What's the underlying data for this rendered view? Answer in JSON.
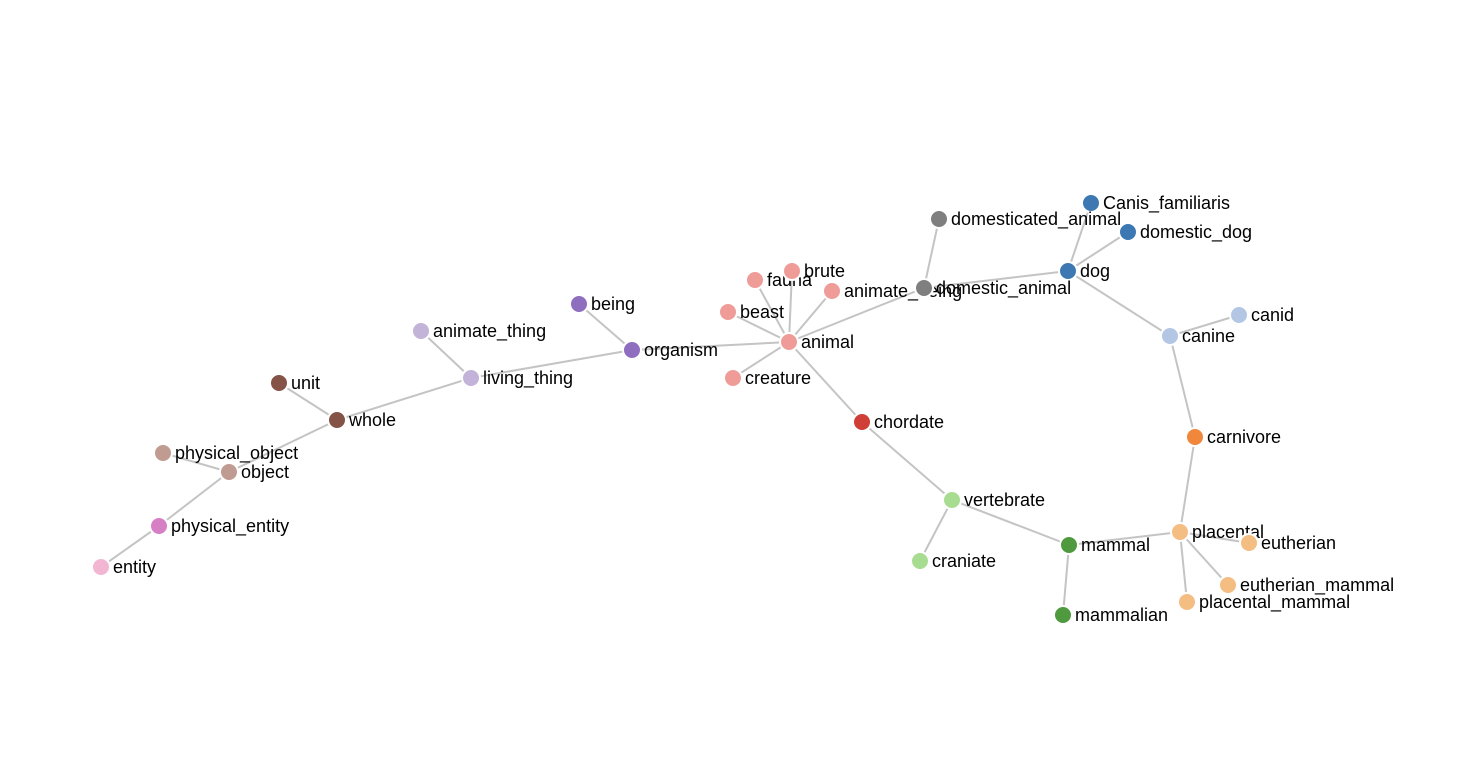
{
  "graph": {
    "nodes": [
      {
        "id": "entity",
        "label": "entity",
        "color": "#f2b6d3"
      },
      {
        "id": "physical_entity",
        "label": "physical_entity",
        "color": "#d67fc4"
      },
      {
        "id": "object",
        "label": "object",
        "color": "#c09b92"
      },
      {
        "id": "physical_object",
        "label": "physical_object",
        "color": "#c09b92"
      },
      {
        "id": "whole",
        "label": "whole",
        "color": "#855248"
      },
      {
        "id": "unit",
        "label": "unit",
        "color": "#855248"
      },
      {
        "id": "living_thing",
        "label": "living_thing",
        "color": "#c3b3d8"
      },
      {
        "id": "animate_thing",
        "label": "animate_thing",
        "color": "#c3b3d8"
      },
      {
        "id": "organism",
        "label": "organism",
        "color": "#8f6ec0"
      },
      {
        "id": "being",
        "label": "being",
        "color": "#8f6ec0"
      },
      {
        "id": "animal",
        "label": "animal",
        "color": "#ef9c98"
      },
      {
        "id": "fauna",
        "label": "fauna",
        "color": "#ef9c98"
      },
      {
        "id": "brute",
        "label": "brute",
        "color": "#ef9c98"
      },
      {
        "id": "beast",
        "label": "beast",
        "color": "#ef9c98"
      },
      {
        "id": "creature",
        "label": "creature",
        "color": "#ef9c98"
      },
      {
        "id": "animate_being",
        "label": "animate_being",
        "color": "#ef9c98"
      },
      {
        "id": "chordate",
        "label": "chordate",
        "color": "#cf3e37"
      },
      {
        "id": "vertebrate",
        "label": "vertebrate",
        "color": "#a8dc91"
      },
      {
        "id": "craniate",
        "label": "craniate",
        "color": "#a8dc91"
      },
      {
        "id": "mammal",
        "label": "mammal",
        "color": "#4f9a3f"
      },
      {
        "id": "mammalian",
        "label": "mammalian",
        "color": "#4f9a3f"
      },
      {
        "id": "placental",
        "label": "placental",
        "color": "#f4bd82"
      },
      {
        "id": "eutherian",
        "label": "eutherian",
        "color": "#f4bd82"
      },
      {
        "id": "eutherian_mammal",
        "label": "eutherian_mammal",
        "color": "#f4bd82"
      },
      {
        "id": "placental_mammal",
        "label": "placental_mammal",
        "color": "#f4bd82"
      },
      {
        "id": "carnivore",
        "label": "carnivore",
        "color": "#f0873a"
      },
      {
        "id": "canine",
        "label": "canine",
        "color": "#b3c7e4"
      },
      {
        "id": "canid",
        "label": "canid",
        "color": "#b3c7e4"
      },
      {
        "id": "dog",
        "label": "dog",
        "color": "#3d78b3"
      },
      {
        "id": "Canis_familiaris",
        "label": "Canis_familiaris",
        "color": "#3d78b3"
      },
      {
        "id": "domestic_dog",
        "label": "domestic_dog",
        "color": "#3d78b3"
      },
      {
        "id": "domestic_animal",
        "label": "domestic_animal",
        "color": "#7f7f7f"
      },
      {
        "id": "domesticated_animal",
        "label": "domesticated_animal",
        "color": "#7f7f7f"
      }
    ],
    "links": [
      {
        "source": "entity",
        "target": "physical_entity"
      },
      {
        "source": "physical_entity",
        "target": "object"
      },
      {
        "source": "object",
        "target": "physical_object"
      },
      {
        "source": "object",
        "target": "whole"
      },
      {
        "source": "whole",
        "target": "unit"
      },
      {
        "source": "whole",
        "target": "living_thing"
      },
      {
        "source": "living_thing",
        "target": "animate_thing"
      },
      {
        "source": "living_thing",
        "target": "organism"
      },
      {
        "source": "organism",
        "target": "being"
      },
      {
        "source": "organism",
        "target": "animal"
      },
      {
        "source": "animal",
        "target": "fauna"
      },
      {
        "source": "animal",
        "target": "brute"
      },
      {
        "source": "animal",
        "target": "beast"
      },
      {
        "source": "animal",
        "target": "creature"
      },
      {
        "source": "animal",
        "target": "animate_being"
      },
      {
        "source": "animal",
        "target": "chordate"
      },
      {
        "source": "animal",
        "target": "domestic_animal"
      },
      {
        "source": "chordate",
        "target": "vertebrate"
      },
      {
        "source": "vertebrate",
        "target": "craniate"
      },
      {
        "source": "vertebrate",
        "target": "mammal"
      },
      {
        "source": "mammal",
        "target": "mammalian"
      },
      {
        "source": "mammal",
        "target": "placental"
      },
      {
        "source": "placental",
        "target": "eutherian"
      },
      {
        "source": "placental",
        "target": "eutherian_mammal"
      },
      {
        "source": "placental",
        "target": "placental_mammal"
      },
      {
        "source": "placental",
        "target": "carnivore"
      },
      {
        "source": "carnivore",
        "target": "canine"
      },
      {
        "source": "canine",
        "target": "canid"
      },
      {
        "source": "canine",
        "target": "dog"
      },
      {
        "source": "dog",
        "target": "Canis_familiaris"
      },
      {
        "source": "dog",
        "target": "domestic_dog"
      },
      {
        "source": "dog",
        "target": "domestic_animal"
      },
      {
        "source": "domestic_animal",
        "target": "domesticated_animal"
      }
    ]
  }
}
